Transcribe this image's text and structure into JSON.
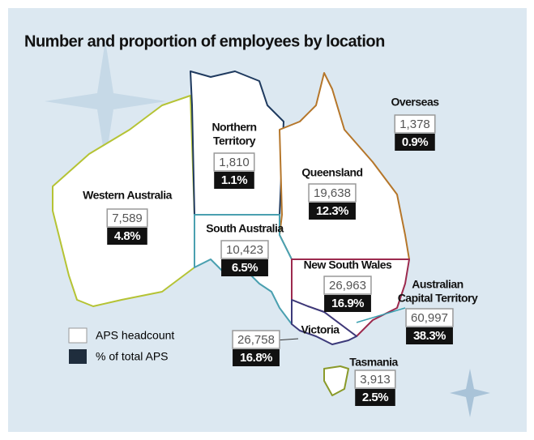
{
  "title": "Number and proportion of employees by location",
  "regions": [
    {
      "name": [
        "Western Australia"
      ],
      "headcount": "7,589",
      "percent": "4.8%"
    },
    {
      "name": [
        "Northern",
        "Territory"
      ],
      "headcount": "1,810",
      "percent": "1.1%"
    },
    {
      "name": [
        "Queensland"
      ],
      "headcount": "19,638",
      "percent": "12.3%"
    },
    {
      "name": [
        "South Australia"
      ],
      "headcount": "10,423",
      "percent": "6.5%"
    },
    {
      "name": [
        "New South Wales"
      ],
      "headcount": "26,963",
      "percent": "16.9%"
    },
    {
      "name": [
        "Overseas"
      ],
      "headcount": "1,378",
      "percent": "0.9%"
    },
    {
      "name": [
        "Australian",
        "Capital Territory"
      ],
      "headcount": "60,997",
      "percent": "38.3%"
    },
    {
      "name": [
        "Victoria"
      ],
      "headcount": "26,758",
      "percent": "16.8%"
    },
    {
      "name": [
        "Tasmania"
      ],
      "headcount": "3,913",
      "percent": "2.5%"
    }
  ],
  "legend": [
    "APS headcount",
    "% of total APS"
  ]
}
